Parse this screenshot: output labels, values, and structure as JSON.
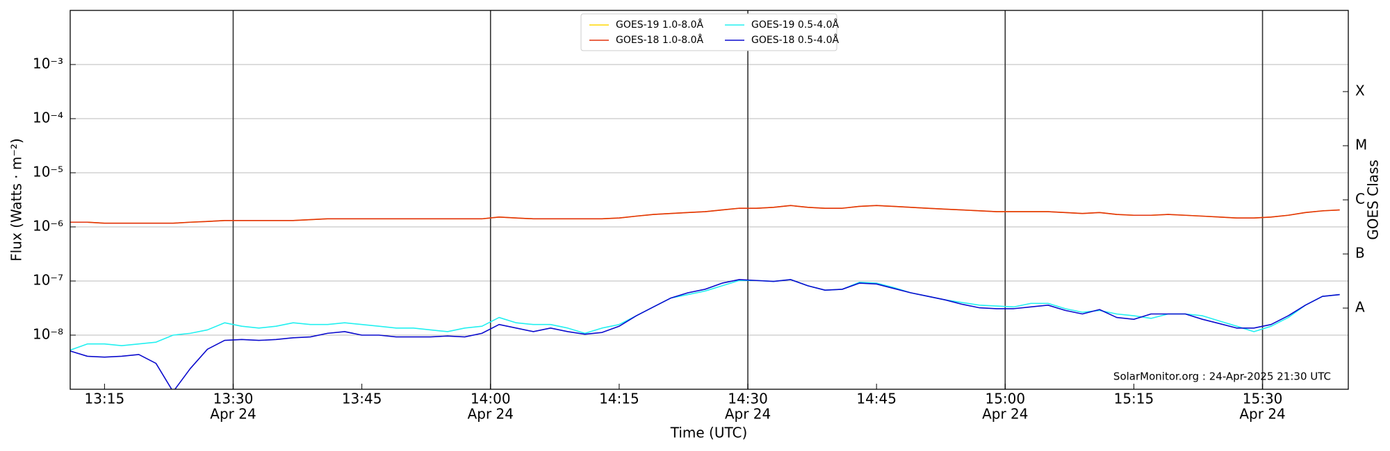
{
  "chart_data": {
    "type": "line",
    "y_label": "Flux (Watts · m⁻²)",
    "x_label": "Time (UTC)",
    "y2_label": "GOES Class",
    "annotation": "SolarMonitor.org : 24-Apr-2025 21:30 UTC",
    "log_scale": true,
    "grid": true,
    "legend_position": "top",
    "xlim": [
      "13:11",
      "15:40"
    ],
    "xticks": [
      "13:15",
      {
        "value": "13:30",
        "label": "13:30",
        "sublabel": "Apr 24"
      },
      "13:45",
      {
        "value": "14:00",
        "label": "14:00",
        "sublabel": "Apr 24"
      },
      "14:15",
      {
        "value": "14:30",
        "label": "14:30",
        "sublabel": "Apr 24"
      },
      "14:45",
      {
        "value": "15:00",
        "label": "15:00",
        "sublabel": "Apr 24"
      },
      "15:15",
      {
        "value": "15:30",
        "label": "15:30",
        "sublabel": "Apr 24"
      }
    ],
    "ylim": [
      1e-09,
      0.01
    ],
    "yticks": [
      {
        "value": 1e-08,
        "label": "10⁻⁸"
      },
      {
        "value": 1e-07,
        "label": "10⁻⁷"
      },
      {
        "value": 1e-06,
        "label": "10⁻⁶"
      },
      {
        "value": 1e-05,
        "label": "10⁻⁵"
      },
      {
        "value": 0.0001,
        "label": "10⁻⁴"
      },
      {
        "value": 0.001,
        "label": "10⁻³"
      }
    ],
    "y2lim": [
      1e-09,
      0.01
    ],
    "y2ticks": [
      {
        "value": 3.16e-08,
        "label": "A"
      },
      {
        "value": 3.16e-07,
        "label": "B"
      },
      {
        "value": 3.16e-06,
        "label": "C"
      },
      {
        "value": 3.16e-05,
        "label": "M"
      },
      {
        "value": 0.000316,
        "label": "X"
      }
    ],
    "x": [
      "13:11",
      "13:13",
      "13:15",
      "13:17",
      "13:19",
      "13:21",
      "13:23",
      "13:25",
      "13:27",
      "13:29",
      "13:31",
      "13:33",
      "13:35",
      "13:37",
      "13:39",
      "13:41",
      "13:43",
      "13:45",
      "13:47",
      "13:49",
      "13:51",
      "13:53",
      "13:55",
      "13:57",
      "13:59",
      "14:01",
      "14:03",
      "14:05",
      "14:07",
      "14:09",
      "14:11",
      "14:13",
      "14:15",
      "14:17",
      "14:19",
      "14:21",
      "14:23",
      "14:25",
      "14:27",
      "14:29",
      "14:31",
      "14:33",
      "14:35",
      "14:37",
      "14:39",
      "14:41",
      "14:43",
      "14:45",
      "14:47",
      "14:49",
      "14:51",
      "14:53",
      "14:55",
      "14:57",
      "14:59",
      "15:01",
      "15:03",
      "15:05",
      "15:07",
      "15:09",
      "15:11",
      "15:13",
      "15:15",
      "15:17",
      "15:19",
      "15:21",
      "15:23",
      "15:25",
      "15:27",
      "15:29",
      "15:31",
      "15:33",
      "15:35",
      "15:37",
      "15:39"
    ],
    "series": [
      {
        "name": "GOES-19 1.0-8.0Å",
        "color": "#ffd700",
        "values": [
          1.22e-06,
          1.22e-06,
          1.17e-06,
          1.17e-06,
          1.17e-06,
          1.17e-06,
          1.17e-06,
          1.22e-06,
          1.26e-06,
          1.31e-06,
          1.31e-06,
          1.31e-06,
          1.31e-06,
          1.31e-06,
          1.36e-06,
          1.41e-06,
          1.41e-06,
          1.41e-06,
          1.41e-06,
          1.41e-06,
          1.41e-06,
          1.41e-06,
          1.41e-06,
          1.41e-06,
          1.41e-06,
          1.52e-06,
          1.46e-06,
          1.41e-06,
          1.41e-06,
          1.41e-06,
          1.41e-06,
          1.41e-06,
          1.46e-06,
          1.58e-06,
          1.7e-06,
          1.77e-06,
          1.84e-06,
          1.91e-06,
          2.06e-06,
          2.21e-06,
          2.21e-06,
          2.3e-06,
          2.48e-06,
          2.3e-06,
          2.21e-06,
          2.21e-06,
          2.39e-06,
          2.48e-06,
          2.39e-06,
          2.3e-06,
          2.21e-06,
          2.13e-06,
          2.06e-06,
          1.98e-06,
          1.91e-06,
          1.91e-06,
          1.91e-06,
          1.91e-06,
          1.84e-06,
          1.77e-06,
          1.84e-06,
          1.7e-06,
          1.64e-06,
          1.64e-06,
          1.7e-06,
          1.64e-06,
          1.58e-06,
          1.52e-06,
          1.46e-06,
          1.46e-06,
          1.52e-06,
          1.64e-06,
          1.84e-06,
          1.98e-06,
          2.06e-06
        ]
      },
      {
        "name": "GOES-18 1.0-8.0Å",
        "color": "#e2320c",
        "values": [
          1.22e-06,
          1.22e-06,
          1.17e-06,
          1.17e-06,
          1.17e-06,
          1.17e-06,
          1.17e-06,
          1.22e-06,
          1.26e-06,
          1.31e-06,
          1.31e-06,
          1.31e-06,
          1.31e-06,
          1.31e-06,
          1.36e-06,
          1.41e-06,
          1.41e-06,
          1.41e-06,
          1.41e-06,
          1.41e-06,
          1.41e-06,
          1.41e-06,
          1.41e-06,
          1.41e-06,
          1.41e-06,
          1.52e-06,
          1.46e-06,
          1.41e-06,
          1.41e-06,
          1.41e-06,
          1.41e-06,
          1.41e-06,
          1.46e-06,
          1.58e-06,
          1.7e-06,
          1.77e-06,
          1.84e-06,
          1.91e-06,
          2.06e-06,
          2.21e-06,
          2.21e-06,
          2.3e-06,
          2.48e-06,
          2.3e-06,
          2.21e-06,
          2.21e-06,
          2.39e-06,
          2.48e-06,
          2.39e-06,
          2.3e-06,
          2.21e-06,
          2.13e-06,
          2.06e-06,
          1.98e-06,
          1.91e-06,
          1.91e-06,
          1.91e-06,
          1.91e-06,
          1.84e-06,
          1.77e-06,
          1.84e-06,
          1.7e-06,
          1.64e-06,
          1.64e-06,
          1.7e-06,
          1.64e-06,
          1.58e-06,
          1.52e-06,
          1.46e-06,
          1.46e-06,
          1.52e-06,
          1.64e-06,
          1.84e-06,
          1.98e-06,
          2.06e-06
        ]
      },
      {
        "name": "GOES-19 0.5-4.0Å",
        "color": "#22f0f0",
        "values": [
          5.29e-09,
          6.87e-09,
          6.87e-09,
          6.38e-09,
          6.87e-09,
          7.41e-09,
          1e-08,
          1.08e-08,
          1.25e-08,
          1.69e-08,
          1.46e-08,
          1.35e-08,
          1.46e-08,
          1.69e-08,
          1.57e-08,
          1.57e-08,
          1.69e-08,
          1.57e-08,
          1.46e-08,
          1.35e-08,
          1.35e-08,
          1.25e-08,
          1.16e-08,
          1.35e-08,
          1.46e-08,
          2.12e-08,
          1.69e-08,
          1.57e-08,
          1.57e-08,
          1.35e-08,
          1.08e-08,
          1.35e-08,
          1.57e-08,
          2.28e-08,
          3.32e-08,
          4.83e-08,
          5.61e-08,
          6.52e-08,
          8.16e-08,
          1.022e-07,
          1.022e-07,
          9.84e-08,
          1.062e-07,
          8.16e-08,
          6.77e-08,
          7.03e-08,
          9.48e-08,
          9.13e-08,
          7.57e-08,
          6.05e-08,
          5.21e-08,
          4.48e-08,
          4e-08,
          3.58e-08,
          3.45e-08,
          3.32e-08,
          3.86e-08,
          3.86e-08,
          3.08e-08,
          2.65e-08,
          2.86e-08,
          2.46e-08,
          2.28e-08,
          2.04e-08,
          2.46e-08,
          2.46e-08,
          2.28e-08,
          1.82e-08,
          1.46e-08,
          1.16e-08,
          1.46e-08,
          2.12e-08,
          3.58e-08,
          5.21e-08,
          5.61e-08
        ]
      },
      {
        "name": "GOES-18 0.5-4.0Å",
        "color": "#0a0acd",
        "values": [
          5.09e-09,
          4.07e-09,
          3.92e-09,
          4.07e-09,
          4.38e-09,
          3.01e-09,
          9e-10,
          2.41e-09,
          5.49e-09,
          7.99e-09,
          8.29e-09,
          7.99e-09,
          8.29e-09,
          8.94e-09,
          9.28e-09,
          1.08e-08,
          1.16e-08,
          1e-08,
          1e-08,
          9.28e-09,
          9.28e-09,
          9.28e-09,
          9.63e-09,
          9.28e-09,
          1.08e-08,
          1.57e-08,
          1.35e-08,
          1.16e-08,
          1.35e-08,
          1.16e-08,
          1.04e-08,
          1.12e-08,
          1.46e-08,
          2.28e-08,
          3.32e-08,
          4.83e-08,
          6.05e-08,
          7.03e-08,
          9.13e-08,
          1.062e-07,
          1.022e-07,
          9.84e-08,
          1.062e-07,
          8.16e-08,
          6.77e-08,
          7.03e-08,
          9.13e-08,
          8.8e-08,
          7.29e-08,
          6.05e-08,
          5.21e-08,
          4.48e-08,
          3.71e-08,
          3.2e-08,
          3.08e-08,
          3.08e-08,
          3.32e-08,
          3.58e-08,
          2.86e-08,
          2.46e-08,
          2.97e-08,
          2.12e-08,
          1.96e-08,
          2.46e-08,
          2.46e-08,
          2.46e-08,
          1.96e-08,
          1.63e-08,
          1.35e-08,
          1.35e-08,
          1.57e-08,
          2.28e-08,
          3.58e-08,
          5.21e-08,
          5.61e-08
        ]
      }
    ]
  }
}
